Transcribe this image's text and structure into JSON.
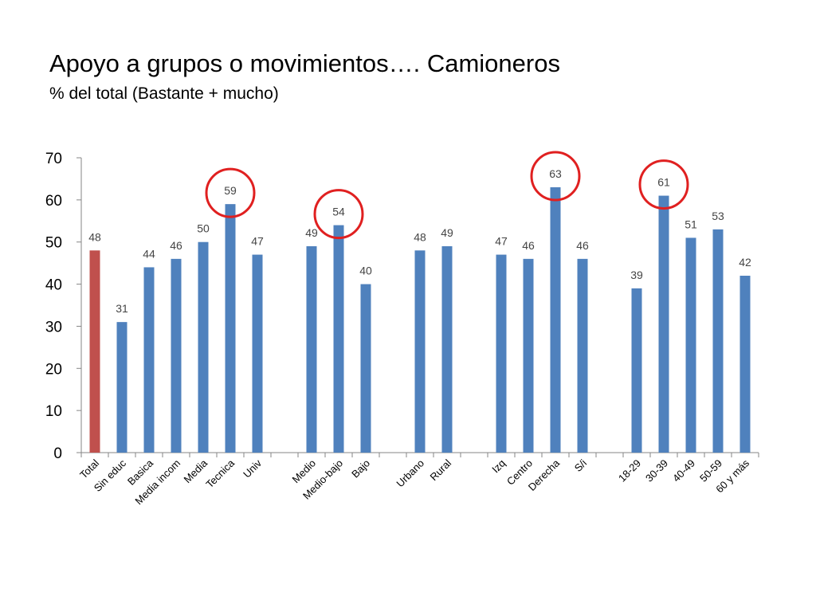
{
  "title": "Apoyo a grupos o movimientos…. Camioneros",
  "subtitle": "% del total (Bastante + mucho)",
  "colors": {
    "default_bar": "#4F81BD",
    "total_bar": "#C0504D",
    "highlight_circle": "#E02020",
    "axis": "#868686"
  },
  "chart_data": {
    "type": "bar",
    "title": "",
    "xlabel": "",
    "ylabel": "",
    "ylim": [
      0,
      70
    ],
    "yticks": [
      0,
      10,
      20,
      30,
      40,
      50,
      60,
      70
    ],
    "grid": false,
    "legend": "none",
    "categories": [
      "Total",
      "Sin educ",
      "Basica",
      "Media incom",
      "Media",
      "Tecnica",
      "Univ",
      "",
      "Medio",
      "Medio-bajo",
      "Bajo",
      "",
      "Urbano",
      "Rural",
      "",
      "Izq",
      "Centro",
      "Derecha",
      "S/i",
      "",
      "18-29",
      "30-39",
      "40-49",
      "50-59",
      "60 y más"
    ],
    "values": [
      48,
      31,
      44,
      46,
      50,
      59,
      47,
      null,
      49,
      54,
      40,
      null,
      48,
      49,
      null,
      47,
      46,
      63,
      46,
      null,
      39,
      61,
      51,
      53,
      42
    ],
    "highlight_category": "Total",
    "circled_categories": [
      "Tecnica",
      "Medio-bajo",
      "Derecha",
      "30-39"
    ]
  }
}
